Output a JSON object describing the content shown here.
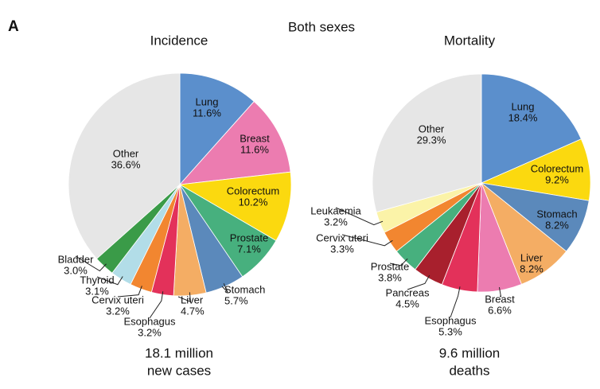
{
  "panel_label": "A",
  "title": "Both sexes",
  "chart_data": [
    {
      "type": "pie",
      "title": "Incidence",
      "categories": [
        "Lung",
        "Breast",
        "Colorectum",
        "Prostate",
        "Stomach",
        "Liver",
        "Esophagus",
        "Cervix uteri",
        "Thyroid",
        "Bladder",
        "Other"
      ],
      "values": [
        11.6,
        11.6,
        10.2,
        7.1,
        5.7,
        4.7,
        3.2,
        3.2,
        3.1,
        3.0,
        36.6
      ],
      "value_labels": [
        "11.6%",
        "11.6%",
        "10.2%",
        "7.1%",
        "5.7%",
        "4.7%",
        "3.2%",
        "3.2%",
        "3.1%",
        "3.0%",
        "36.6%"
      ],
      "colors": [
        "#5b8fcc",
        "#ec7cb0",
        "#fbd90f",
        "#47b07e",
        "#5b89bb",
        "#f4ad64",
        "#e3315a",
        "#f28630",
        "#b2dde8",
        "#3a9b48",
        "#e6e6e6"
      ],
      "note": [
        "18.1 million",
        "new cases"
      ]
    },
    {
      "type": "pie",
      "title": "Mortality",
      "categories": [
        "Lung",
        "Colorectum",
        "Stomach",
        "Liver",
        "Breast",
        "Esophagus",
        "Pancreas",
        "Prostate",
        "Cervix uteri",
        "Leukaemia",
        "Other"
      ],
      "values": [
        18.4,
        9.2,
        8.2,
        8.2,
        6.6,
        5.3,
        4.5,
        3.8,
        3.3,
        3.2,
        29.3
      ],
      "value_labels": [
        "18.4%",
        "9.2%",
        "8.2%",
        "8.2%",
        "6.6%",
        "5.3%",
        "4.5%",
        "3.8%",
        "3.3%",
        "3.2%",
        "29.3%"
      ],
      "colors": [
        "#5b8fcc",
        "#fbd90f",
        "#5b89bb",
        "#f4ad64",
        "#ec7cb0",
        "#e3315a",
        "#a8202d",
        "#47b07e",
        "#f28630",
        "#fbf3a8",
        "#e6e6e6"
      ],
      "note": [
        "9.6 million",
        "deaths"
      ]
    }
  ]
}
